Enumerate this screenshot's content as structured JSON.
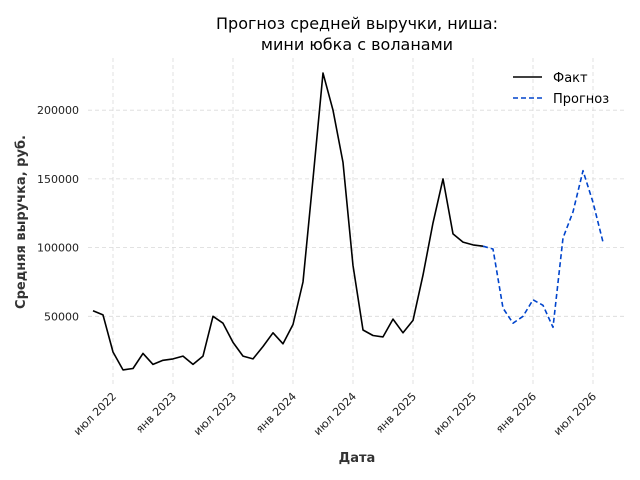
{
  "chart_data": {
    "type": "line",
    "title_lines": [
      "Прогноз средней выручки, ниша:",
      "мини юбка с воланами"
    ],
    "xlabel": "Дата",
    "ylabel": "Средняя выручка, руб.",
    "x_tick_labels": [
      "июл 2022",
      "янв 2023",
      "июл 2023",
      "янв 2024",
      "июл 2024",
      "янв 2025",
      "июл 2025",
      "янв 2026",
      "июл 2026"
    ],
    "y_ticks": [
      50000,
      100000,
      150000,
      200000
    ],
    "y_tick_labels": [
      "50000",
      "100000",
      "150000",
      "200000"
    ],
    "ylim": [
      0,
      238000
    ],
    "grid": true,
    "legend_position": "top-right",
    "series": [
      {
        "name": "Факт",
        "style": "solid",
        "color": "#000000",
        "dates": [
          "2022-05",
          "2022-06",
          "2022-07",
          "2022-08",
          "2022-09",
          "2022-10",
          "2022-11",
          "2022-12",
          "2023-01",
          "2023-02",
          "2023-03",
          "2023-04",
          "2023-05",
          "2023-06",
          "2023-07",
          "2023-08",
          "2023-09",
          "2023-10",
          "2023-11",
          "2023-12",
          "2024-01",
          "2024-02",
          "2024-03",
          "2024-04",
          "2024-05",
          "2024-06",
          "2024-07",
          "2024-08",
          "2024-09",
          "2024-10",
          "2024-11",
          "2024-12",
          "2025-01",
          "2025-02",
          "2025-03",
          "2025-04",
          "2025-05",
          "2025-06",
          "2025-07",
          "2025-08"
        ],
        "values": [
          54000,
          51000,
          24000,
          11000,
          12000,
          23000,
          15000,
          18000,
          19000,
          21000,
          15000,
          21000,
          50000,
          45000,
          31000,
          21000,
          19000,
          28000,
          38000,
          30000,
          44000,
          75000,
          150000,
          227000,
          200000,
          162000,
          87000,
          40000,
          36000,
          35000,
          48000,
          38000,
          47000,
          80000,
          118000,
          150000,
          110000,
          104000,
          102000,
          101000
        ]
      },
      {
        "name": "Прогноз",
        "style": "dashed",
        "color": "#0044cc",
        "dates": [
          "2025-08",
          "2025-09",
          "2025-10",
          "2025-11",
          "2025-12",
          "2026-01",
          "2026-02",
          "2026-03",
          "2026-04",
          "2026-05",
          "2026-06",
          "2026-07",
          "2026-08"
        ],
        "values": [
          101000,
          99000,
          56000,
          45000,
          50000,
          62000,
          58000,
          42000,
          107000,
          126000,
          156000,
          133000,
          104000
        ]
      }
    ]
  }
}
